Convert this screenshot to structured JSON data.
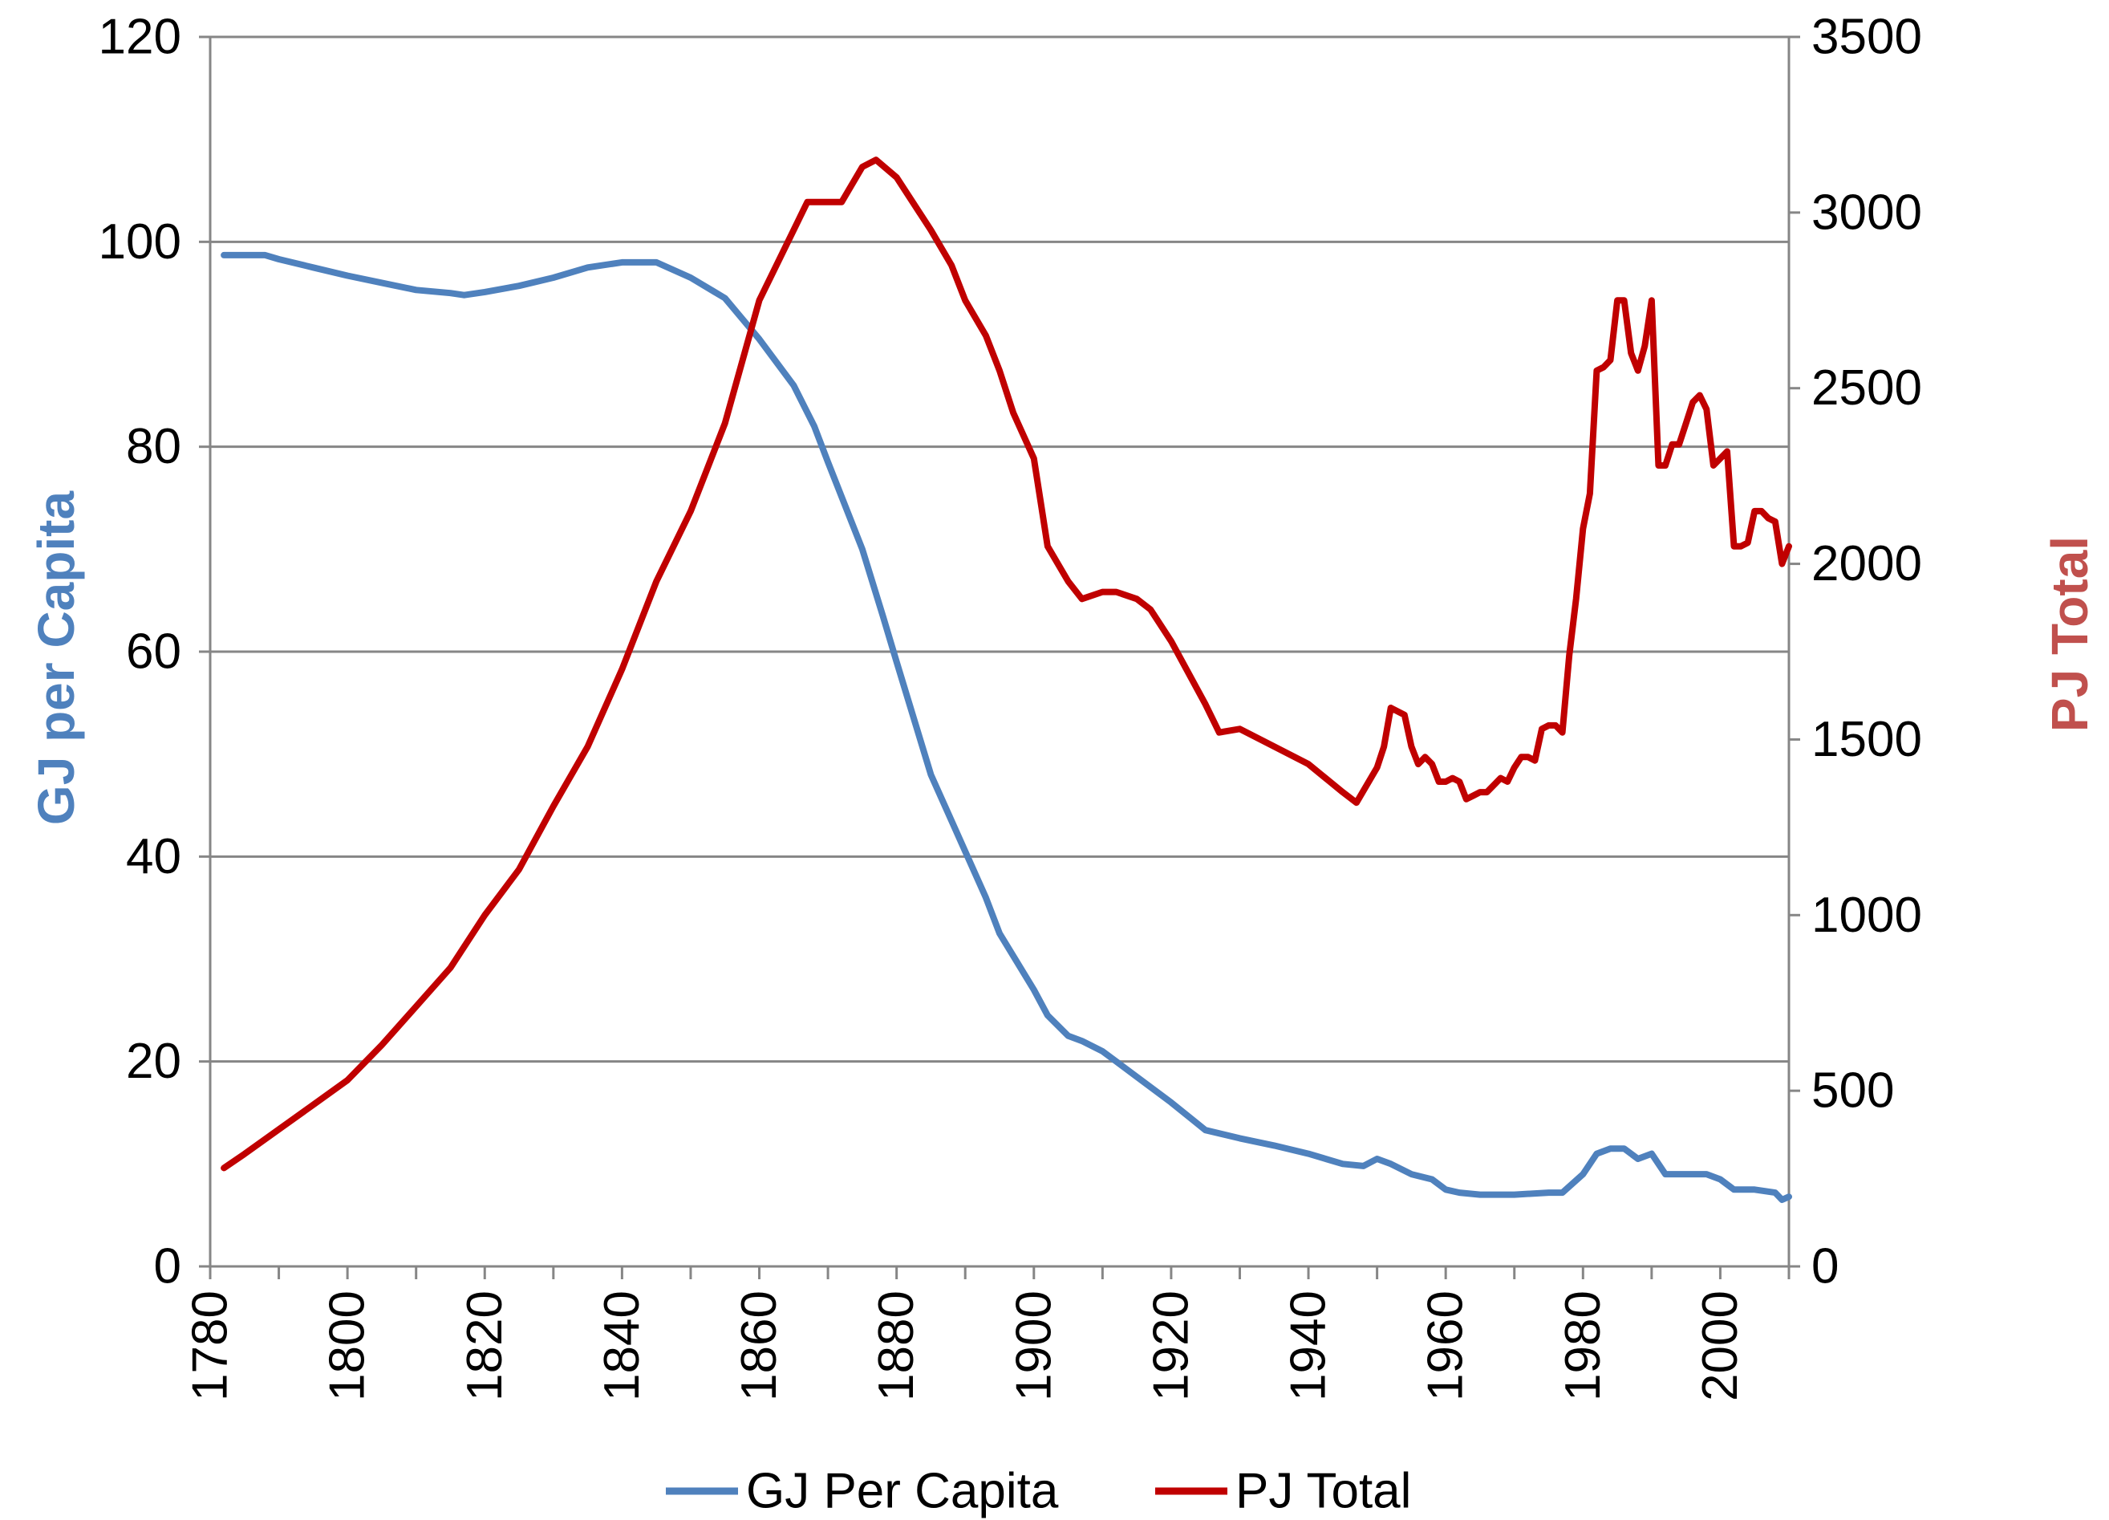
{
  "chart_data": {
    "type": "line",
    "title": "",
    "xlabel": "",
    "xlim": [
      1780,
      2010
    ],
    "x_ticks": [
      "1780",
      "1800",
      "1820",
      "1840",
      "1860",
      "1880",
      "1900",
      "1920",
      "1940",
      "1960",
      "1980",
      "2000"
    ],
    "y_left": {
      "label": "GJ per Capita",
      "range": [
        0,
        120
      ],
      "ticks": [
        "0",
        "20",
        "40",
        "60",
        "80",
        "100",
        "120"
      ],
      "color": "#4F81BD"
    },
    "y_right": {
      "label": "PJ Total",
      "range": [
        0,
        3500
      ],
      "ticks": [
        "0",
        "500",
        "1000",
        "1500",
        "2000",
        "2500",
        "3000",
        "3500"
      ],
      "color": "#C0504D"
    },
    "grid": "horizontal",
    "legend_position": "bottom",
    "series": [
      {
        "name": "GJ Per Capita",
        "axis": "left",
        "color": "#4F81BD",
        "x": [
          1782,
          1788,
          1790,
          1795,
          1800,
          1805,
          1810,
          1815,
          1817,
          1820,
          1825,
          1830,
          1835,
          1840,
          1845,
          1850,
          1855,
          1860,
          1865,
          1868,
          1870,
          1875,
          1878,
          1880,
          1885,
          1888,
          1890,
          1893,
          1895,
          1900,
          1902,
          1905,
          1907,
          1910,
          1912,
          1915,
          1920,
          1925,
          1930,
          1935,
          1940,
          1945,
          1948,
          1950,
          1952,
          1955,
          1958,
          1960,
          1962,
          1965,
          1970,
          1975,
          1977,
          1980,
          1982,
          1984,
          1986,
          1988,
          1990,
          1992,
          1995,
          1998,
          2000,
          2002,
          2005,
          2008,
          2009,
          2010
        ],
        "y": [
          98.7,
          98.7,
          98.3,
          97.5,
          96.7,
          96,
          95.3,
          95,
          94.8,
          95.1,
          95.7,
          96.5,
          97.5,
          98,
          98,
          96.5,
          94.5,
          90.5,
          86,
          82,
          78.5,
          70,
          63.5,
          59,
          48,
          43.5,
          40.5,
          36,
          32.5,
          27,
          24.5,
          22.5,
          22,
          21,
          20,
          18.5,
          16,
          13.3,
          12.5,
          11.8,
          11,
          10,
          9.8,
          10.5,
          10,
          9,
          8.5,
          7.5,
          7.2,
          7,
          7,
          7.2,
          7.2,
          9,
          11,
          11.5,
          11.5,
          10.5,
          11,
          9,
          9,
          9,
          8.5,
          7.5,
          7.5,
          7.2,
          6.5,
          6.8
        ]
      },
      {
        "name": "PJ Total",
        "axis": "right",
        "color": "#C00000",
        "x": [
          1782,
          1785,
          1790,
          1795,
          1800,
          1805,
          1810,
          1815,
          1820,
          1825,
          1830,
          1835,
          1840,
          1845,
          1850,
          1855,
          1860,
          1865,
          1867,
          1872,
          1875,
          1877,
          1880,
          1885,
          1888,
          1890,
          1893,
          1895,
          1897,
          1900,
          1902,
          1905,
          1907,
          1910,
          1912,
          1915,
          1917,
          1920,
          1925,
          1927,
          1930,
          1935,
          1940,
          1945,
          1947,
          1950,
          1951,
          1952,
          1954,
          1955,
          1956,
          1957,
          1958,
          1959,
          1960,
          1961,
          1962,
          1963,
          1964,
          1965,
          1966,
          1967,
          1968,
          1969,
          1970,
          1971,
          1972,
          1973,
          1974,
          1975,
          1976,
          1977,
          1978,
          1979,
          1980,
          1981,
          1982,
          1983,
          1984,
          1985,
          1986,
          1987,
          1988,
          1989,
          1990,
          1991,
          1992,
          1993,
          1994,
          1995,
          1996,
          1997,
          1998,
          1999,
          2000,
          2001,
          2002,
          2003,
          2004,
          2005,
          2006,
          2007,
          2008,
          2009,
          2010
        ],
        "y": [
          280,
          320,
          390,
          460,
          530,
          630,
          740,
          850,
          1000,
          1130,
          1310,
          1480,
          1700,
          1950,
          2150,
          2400,
          2750,
          2950,
          3030,
          3030,
          3130,
          3150,
          3100,
          2950,
          2850,
          2750,
          2650,
          2550,
          2430,
          2300,
          2050,
          1950,
          1900,
          1920,
          1920,
          1900,
          1870,
          1780,
          1600,
          1520,
          1530,
          1480,
          1430,
          1350,
          1320,
          1420,
          1480,
          1590,
          1570,
          1480,
          1430,
          1450,
          1430,
          1380,
          1380,
          1390,
          1380,
          1330,
          1340,
          1350,
          1350,
          1370,
          1390,
          1380,
          1420,
          1450,
          1450,
          1440,
          1530,
          1540,
          1540,
          1520,
          1740,
          1900,
          2100,
          2200,
          2550,
          2560,
          2580,
          2750,
          2750,
          2600,
          2550,
          2620,
          2750,
          2280,
          2280,
          2340,
          2340,
          2400,
          2460,
          2480,
          2440,
          2280,
          2300,
          2320,
          2050,
          2050,
          2060,
          2150,
          2150,
          2130,
          2120,
          2000,
          2050
        ]
      }
    ]
  }
}
